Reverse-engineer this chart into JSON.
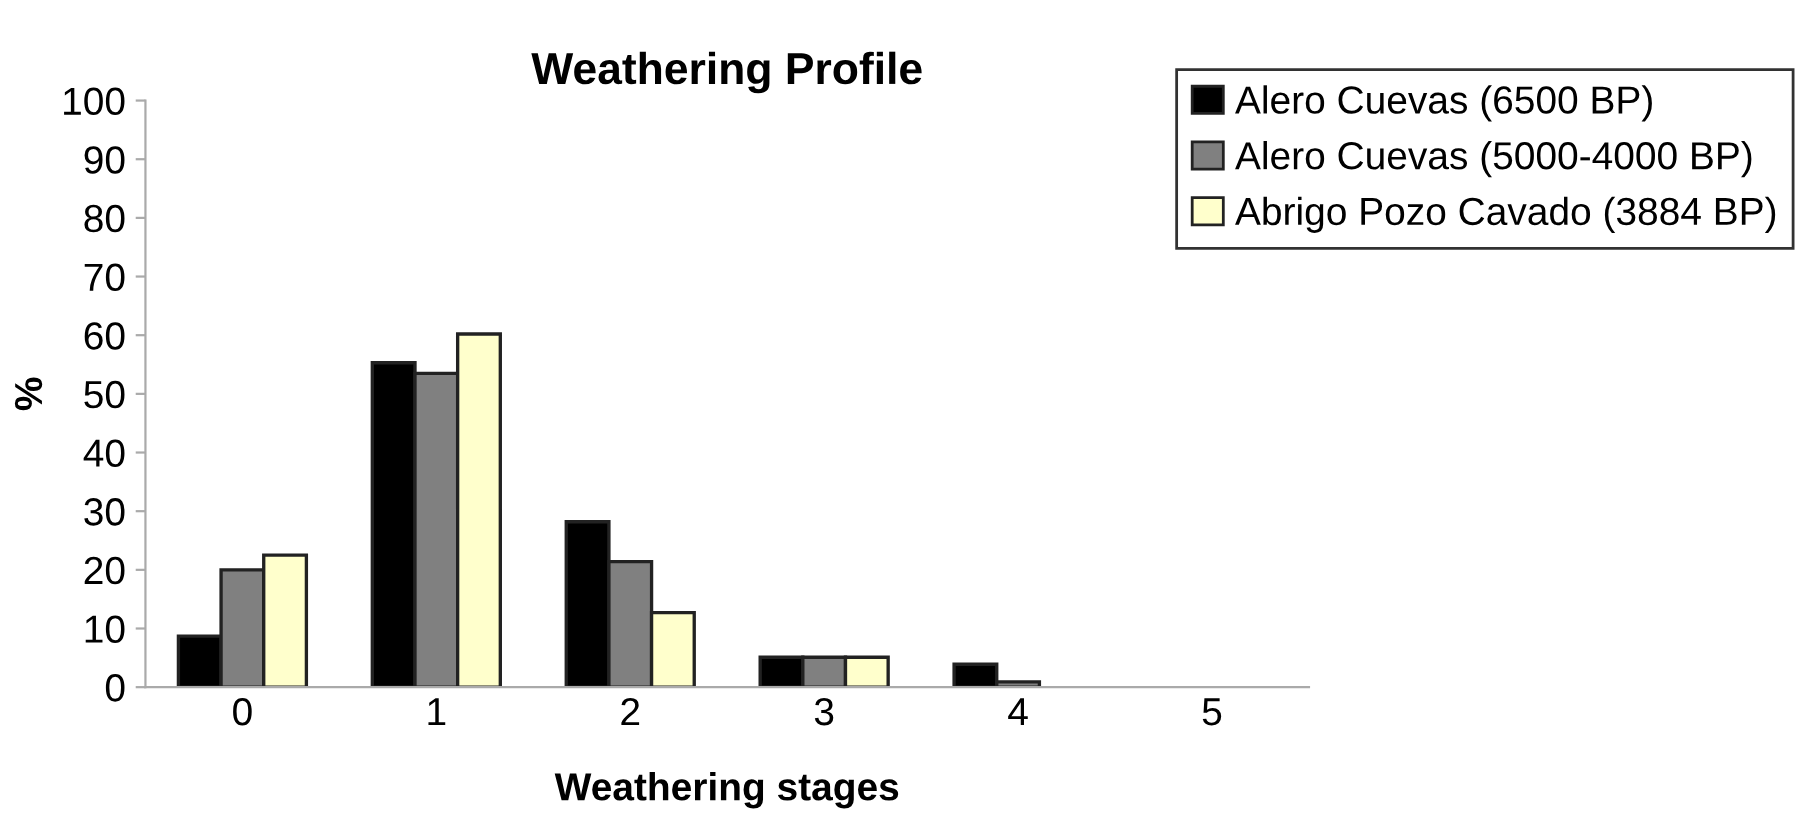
{
  "chart_data": {
    "type": "bar",
    "title": "Weathering Profile",
    "xlabel": "Weathering stages",
    "ylabel": "%",
    "categories": [
      "0",
      "1",
      "2",
      "3",
      "4",
      "5"
    ],
    "series": [
      {
        "name": "Alero Cuevas (6500 BP)",
        "color": "#000000",
        "values": [
          8.7,
          55.3,
          28.2,
          5.1,
          3.9,
          null
        ]
      },
      {
        "name": "Alero Cuevas (5000-4000 BP)",
        "color": "#808080",
        "values": [
          20,
          53.5,
          21.4,
          5.1,
          0.9,
          null
        ]
      },
      {
        "name": "Abrigo Pozo Cavado (3884 BP)",
        "color": "#ffffcc",
        "values": [
          22.5,
          60.2,
          12.7,
          5.1,
          null,
          null
        ]
      }
    ],
    "ylim": [
      0,
      100
    ],
    "yticks": [
      0,
      10,
      20,
      30,
      40,
      50,
      60,
      70,
      80,
      90,
      100
    ],
    "grid": false,
    "legend": "top right"
  }
}
